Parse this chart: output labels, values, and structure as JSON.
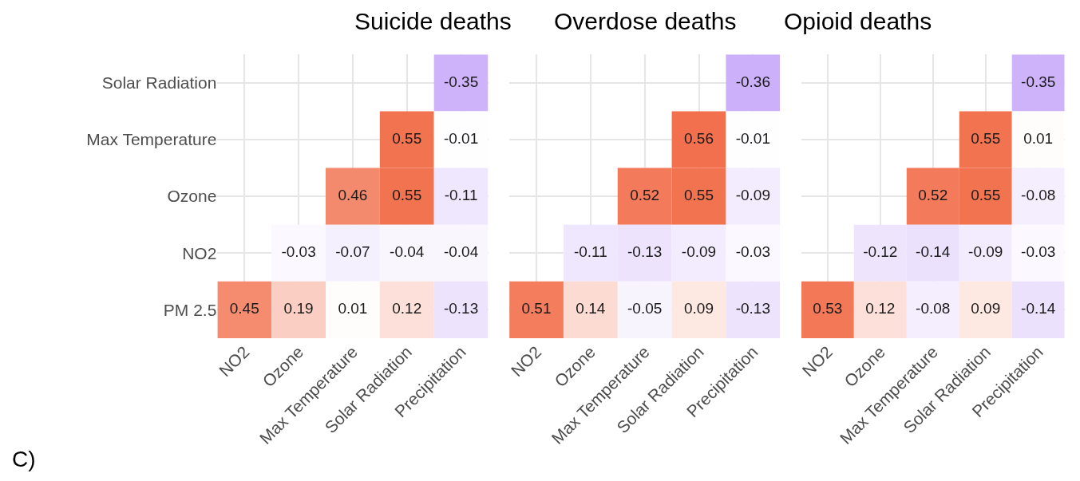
{
  "chart_data": [
    {
      "type": "heatmap",
      "title": "Suicide deaths",
      "categories": [
        "NO2",
        "Ozone",
        "Max Temperature",
        "Solar Radiation",
        "Precipitation"
      ],
      "y_categories": [
        "Solar Radiation",
        "Max Temperature",
        "Ozone",
        "NO2",
        "PM 2.5"
      ],
      "cells": [
        [
          null,
          null,
          null,
          null,
          -0.35
        ],
        [
          null,
          null,
          null,
          0.55,
          -0.01
        ],
        [
          null,
          null,
          0.46,
          0.55,
          -0.11
        ],
        [
          null,
          -0.03,
          -0.07,
          -0.04,
          -0.04
        ],
        [
          0.45,
          0.19,
          0.01,
          0.12,
          -0.13
        ]
      ],
      "colors": [
        "#b086f7",
        "#ffffff",
        "#f2704d"
      ],
      "data_labels": true,
      "grid": true,
      "annotations": [
        "C)"
      ]
    },
    {
      "type": "heatmap",
      "title": "Overdose deaths",
      "categories": [
        "NO2",
        "Ozone",
        "Max Temperature",
        "Solar Radiation",
        "Precipitation"
      ],
      "y_categories": [
        null,
        null,
        null,
        null,
        null
      ],
      "cells": [
        [
          null,
          null,
          null,
          null,
          -0.36
        ],
        [
          null,
          null,
          null,
          0.56,
          -0.01
        ],
        [
          null,
          null,
          0.52,
          0.55,
          -0.09
        ],
        [
          null,
          -0.11,
          -0.13,
          -0.09,
          -0.03
        ],
        [
          0.51,
          0.14,
          -0.05,
          0.09,
          -0.13
        ]
      ],
      "colors": [
        "#b086f7",
        "#ffffff",
        "#f2704d"
      ],
      "data_labels": true,
      "grid": true
    },
    {
      "type": "heatmap",
      "title": "Opioid deaths",
      "categories": [
        "NO2",
        "Ozone",
        "Max Temperature",
        "Solar Radiation",
        "Precipitation"
      ],
      "y_categories": [
        null,
        null,
        null,
        null,
        null
      ],
      "cells": [
        [
          null,
          null,
          null,
          null,
          -0.35
        ],
        [
          null,
          null,
          null,
          0.55,
          0.01
        ],
        [
          null,
          null,
          0.52,
          0.55,
          -0.08
        ],
        [
          null,
          -0.12,
          -0.14,
          -0.09,
          -0.03
        ],
        [
          0.53,
          0.12,
          -0.08,
          0.09,
          -0.14
        ]
      ],
      "colors": [
        "#b086f7",
        "#ffffff",
        "#f2704d"
      ],
      "data_labels": true,
      "grid": true
    }
  ]
}
